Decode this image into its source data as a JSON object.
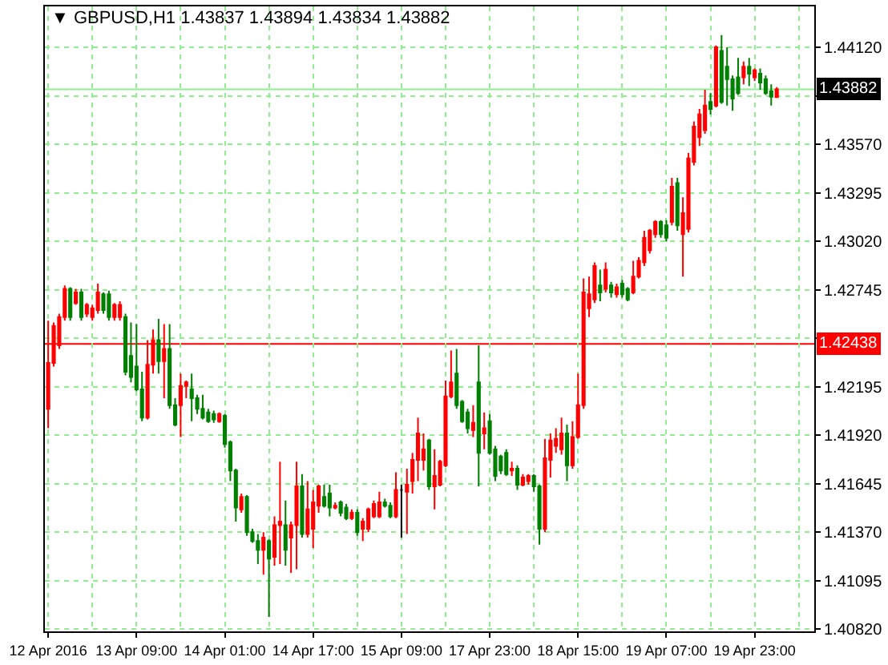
{
  "chart_data": {
    "type": "candlestick",
    "title": "▼ GBPUSD,H1 1.43837 1.43894 1.43834 1.43882",
    "categories": [
      "12 Apr 2016",
      null,
      null,
      null,
      null,
      null,
      null,
      null,
      null,
      null,
      null,
      null,
      null,
      null,
      null,
      null,
      "13 Apr 09:00",
      null,
      null,
      null,
      null,
      null,
      null,
      null,
      null,
      null,
      null,
      null,
      null,
      null,
      null,
      null,
      "14 Apr 01:00",
      null,
      null,
      null,
      null,
      null,
      null,
      null,
      null,
      null,
      null,
      null,
      null,
      null,
      null,
      null,
      "14 Apr 17:00",
      null,
      null,
      null,
      null,
      null,
      null,
      null,
      null,
      null,
      null,
      null,
      null,
      null,
      null,
      null,
      "15 Apr 09:00",
      null,
      null,
      null,
      null,
      null,
      null,
      null,
      null,
      null,
      null,
      null,
      null,
      null,
      null,
      null,
      "17 Apr 23:00",
      null,
      null,
      null,
      null,
      null,
      null,
      null,
      null,
      null,
      null,
      null,
      null,
      null,
      null,
      null,
      "18 Apr 15:00",
      null,
      null,
      null,
      null,
      null,
      null,
      null,
      null,
      null,
      null,
      null,
      null,
      null,
      null,
      null,
      "19 Apr 07:00",
      null,
      null,
      null,
      null,
      null,
      null,
      null,
      null,
      null,
      null,
      null,
      null,
      null,
      null,
      null,
      "19 Apr 23:00",
      null,
      null,
      null,
      null
    ],
    "ohlc": [
      [
        1.4207,
        1.4257,
        1.4196,
        1.4233
      ],
      [
        1.4233,
        1.4256,
        1.4231,
        1.4254
      ],
      [
        1.4243,
        1.4261,
        1.4241,
        1.4259
      ],
      [
        1.4259,
        1.4277,
        1.4257,
        1.4275
      ],
      [
        1.4275,
        1.4276,
        1.4257,
        1.4259
      ],
      [
        1.4267,
        1.4275,
        1.4266,
        1.4273
      ],
      [
        1.4273,
        1.4275,
        1.4257,
        1.4259
      ],
      [
        1.4261,
        1.4267,
        1.4259,
        1.4266
      ],
      [
        1.4259,
        1.4266,
        1.4257,
        1.4264
      ],
      [
        1.4263,
        1.4278,
        1.4261,
        1.4273
      ],
      [
        1.4272,
        1.4273,
        1.4261,
        1.4263
      ],
      [
        1.4272,
        1.4274,
        1.4257,
        1.4259
      ],
      [
        1.4259,
        1.4267,
        1.4257,
        1.4266
      ],
      [
        1.4259,
        1.4268,
        1.4257,
        1.4266
      ],
      [
        1.4259,
        1.4261,
        1.4226,
        1.4228
      ],
      [
        1.4237,
        1.4256,
        1.4222,
        1.4225
      ],
      [
        1.4231,
        1.4255,
        1.4217,
        1.4218
      ],
      [
        1.4218,
        1.4228,
        1.42,
        1.4202
      ],
      [
        1.4202,
        1.4246,
        1.4201,
        1.4232
      ],
      [
        1.4232,
        1.4252,
        1.4227,
        1.4246
      ],
      [
        1.4246,
        1.4258,
        1.4227,
        1.4234
      ],
      [
        1.4234,
        1.4255,
        1.4213,
        1.4241
      ],
      [
        1.4241,
        1.4255,
        1.4207,
        1.4209
      ],
      [
        1.4209,
        1.4213,
        1.4197,
        1.4198
      ],
      [
        1.4209,
        1.4227,
        1.4191,
        1.422
      ],
      [
        1.422,
        1.4223,
        1.4213,
        1.4222
      ],
      [
        1.4218,
        1.4227,
        1.42,
        1.4213
      ],
      [
        1.4213,
        1.4215,
        1.4204,
        1.4207
      ],
      [
        1.4207,
        1.4215,
        1.4201,
        1.4202
      ],
      [
        1.4205,
        1.4207,
        1.4199,
        1.42
      ],
      [
        1.4204,
        1.4206,
        1.4199,
        1.4201
      ],
      [
        1.42,
        1.4205,
        1.4199,
        1.4204
      ],
      [
        1.4203,
        1.4204,
        1.4185,
        1.4187
      ],
      [
        1.4188,
        1.4189,
        1.4166,
        1.4172
      ],
      [
        1.4172,
        1.4173,
        1.4143,
        1.4151
      ],
      [
        1.415,
        1.4159,
        1.4148,
        1.4157
      ],
      [
        1.4157,
        1.4158,
        1.4135,
        1.4137
      ],
      [
        1.4137,
        1.4139,
        1.4131,
        1.4132
      ],
      [
        1.4132,
        1.4136,
        1.4119,
        1.4127
      ],
      [
        1.4127,
        1.4137,
        1.4113,
        1.4134
      ],
      [
        1.4132,
        1.4133,
        1.4089,
        1.4122
      ],
      [
        1.4123,
        1.4146,
        1.4118,
        1.4141
      ],
      [
        1.4141,
        1.4177,
        1.4119,
        1.4143
      ],
      [
        1.4141,
        1.4155,
        1.4118,
        1.4127
      ],
      [
        1.4134,
        1.4143,
        1.4114,
        1.4141
      ],
      [
        1.4141,
        1.4177,
        1.4116,
        1.4163
      ],
      [
        1.4163,
        1.417,
        1.4134,
        1.4136
      ],
      [
        1.4136,
        1.4166,
        1.4134,
        1.415
      ],
      [
        1.4139,
        1.4161,
        1.4128,
        1.4154
      ],
      [
        1.4152,
        1.4164,
        1.4148,
        1.4163
      ],
      [
        1.4157,
        1.4164,
        1.4151,
        1.4152
      ],
      [
        1.4159,
        1.4164,
        1.4146,
        1.4151
      ],
      [
        1.4151,
        1.4154,
        1.415,
        1.4152
      ],
      [
        1.4154,
        1.4155,
        1.4146,
        1.4148
      ],
      [
        1.4151,
        1.4153,
        1.4144,
        1.4145
      ],
      [
        1.4145,
        1.415,
        1.4144,
        1.4148
      ],
      [
        1.4148,
        1.415,
        1.4135,
        1.4137
      ],
      [
        1.4139,
        1.4145,
        1.4132,
        1.4143
      ],
      [
        1.4139,
        1.4151,
        1.4137,
        1.415
      ],
      [
        1.4146,
        1.4155,
        1.4145,
        1.4153
      ],
      [
        1.4146,
        1.416,
        1.4145,
        1.4154
      ],
      [
        1.4154,
        1.4156,
        1.4151,
        1.4152
      ],
      [
        1.4152,
        1.4154,
        1.4145,
        1.4146
      ],
      [
        1.4146,
        1.4171,
        1.4145,
        1.4161
      ],
      [
        1.4161,
        1.4164,
        1.4134,
        1.4161
      ],
      [
        1.416,
        1.4173,
        1.4136,
        1.4164
      ],
      [
        1.4166,
        1.4182,
        1.4159,
        1.4178
      ],
      [
        1.4178,
        1.4202,
        1.4166,
        1.4193
      ],
      [
        1.4178,
        1.4193,
        1.4172,
        1.4184
      ],
      [
        1.4189,
        1.419,
        1.4161,
        1.4163
      ],
      [
        1.4163,
        1.4184,
        1.415,
        1.4169
      ],
      [
        1.4164,
        1.4178,
        1.4163,
        1.4177
      ],
      [
        1.4175,
        1.4223,
        1.4174,
        1.4214
      ],
      [
        1.4214,
        1.424,
        1.4213,
        1.4222
      ],
      [
        1.4227,
        1.4241,
        1.4207,
        1.4209
      ],
      [
        1.4211,
        1.4212,
        1.4199,
        1.42
      ],
      [
        1.4205,
        1.4207,
        1.4193,
        1.4196
      ],
      [
        1.4195,
        1.4209,
        1.4191,
        1.4199
      ],
      [
        1.4222,
        1.4243,
        1.4163,
        1.4182
      ],
      [
        1.4193,
        1.4205,
        1.4184,
        1.4196
      ],
      [
        1.42,
        1.4204,
        1.4181,
        1.4182
      ],
      [
        1.4184,
        1.4186,
        1.4166,
        1.4169
      ],
      [
        1.418,
        1.4181,
        1.417,
        1.4172
      ],
      [
        1.4182,
        1.4184,
        1.4169,
        1.417
      ],
      [
        1.4172,
        1.4177,
        1.4169,
        1.4173
      ],
      [
        1.4173,
        1.4175,
        1.4161,
        1.4164
      ],
      [
        1.4164,
        1.417,
        1.4163,
        1.4168
      ],
      [
        1.4166,
        1.417,
        1.4164,
        1.4169
      ],
      [
        1.4169,
        1.417,
        1.416,
        1.4163
      ],
      [
        1.4163,
        1.4164,
        1.413,
        1.4139
      ],
      [
        1.4139,
        1.419,
        1.4137,
        1.4179
      ],
      [
        1.4178,
        1.4193,
        1.4168,
        1.4189
      ],
      [
        1.4186,
        1.4196,
        1.4182,
        1.419
      ],
      [
        1.4184,
        1.4202,
        1.4181,
        1.4193
      ],
      [
        1.4193,
        1.4198,
        1.4166,
        1.4175
      ],
      [
        1.4175,
        1.42,
        1.4173,
        1.4191
      ],
      [
        1.4191,
        1.4227,
        1.419,
        1.4209
      ],
      [
        1.4209,
        1.4281,
        1.4207,
        1.4273
      ],
      [
        1.4264,
        1.4282,
        1.4259,
        1.4272
      ],
      [
        1.4269,
        1.429,
        1.4267,
        1.4288
      ],
      [
        1.4277,
        1.4286,
        1.4268,
        1.4273
      ],
      [
        1.4275,
        1.429,
        1.4273,
        1.4286
      ],
      [
        1.4277,
        1.4279,
        1.427,
        1.4273
      ],
      [
        1.4272,
        1.4278,
        1.427,
        1.4276
      ],
      [
        1.4278,
        1.428,
        1.427,
        1.4272
      ],
      [
        1.4275,
        1.4276,
        1.4268,
        1.4269
      ],
      [
        1.4273,
        1.4291,
        1.4272,
        1.4282
      ],
      [
        1.4282,
        1.4293,
        1.4281,
        1.4291
      ],
      [
        1.429,
        1.4308,
        1.4288,
        1.4304
      ],
      [
        1.4297,
        1.4309,
        1.4295,
        1.4308
      ],
      [
        1.4306,
        1.4314,
        1.4304,
        1.4313
      ],
      [
        1.4313,
        1.4314,
        1.4304,
        1.4306
      ],
      [
        1.4311,
        1.4314,
        1.4302,
        1.4304
      ],
      [
        1.4313,
        1.4338,
        1.4311,
        1.4333
      ],
      [
        1.4335,
        1.4338,
        1.4308,
        1.4311
      ],
      [
        1.4306,
        1.4327,
        1.4282,
        1.4318
      ],
      [
        1.4309,
        1.4352,
        1.4307,
        1.4349
      ],
      [
        1.4347,
        1.437,
        1.4345,
        1.4367
      ],
      [
        1.4361,
        1.4377,
        1.4356,
        1.4374
      ],
      [
        1.4365,
        1.4388,
        1.4363,
        1.4379
      ],
      [
        1.4381,
        1.4386,
        1.4374,
        1.4377
      ],
      [
        1.4379,
        1.4413,
        1.4378,
        1.4412
      ],
      [
        1.441,
        1.4419,
        1.438,
        1.4381
      ],
      [
        1.4401,
        1.4412,
        1.4379,
        1.4394
      ],
      [
        1.4394,
        1.4396,
        1.4376,
        1.4383
      ],
      [
        1.4395,
        1.4406,
        1.4385,
        1.4386
      ],
      [
        1.4395,
        1.4404,
        1.4391,
        1.4401
      ],
      [
        1.4401,
        1.4406,
        1.439,
        1.4397
      ],
      [
        1.4395,
        1.44,
        1.4393,
        1.4399
      ],
      [
        1.4397,
        1.44,
        1.4388,
        1.4392
      ],
      [
        1.4394,
        1.4396,
        1.4385,
        1.4386
      ],
      [
        1.4387,
        1.4391,
        1.4379,
        1.4384
      ],
      [
        1.43837,
        1.43894,
        1.43834,
        1.43882
      ]
    ],
    "colors": [
      "#ff0000",
      "#ff0000",
      "#ff0000",
      "#ff0000",
      "#008000",
      "#ff0000",
      "#008000",
      "#ff0000",
      "#ff0000",
      "#ff0000",
      "#008000",
      "#008000",
      "#ff0000",
      "#ff0000",
      "#008000",
      "#008000",
      "#008000",
      "#008000",
      "#ff0000",
      "#ff0000",
      "#008000",
      "#ff0000",
      "#008000",
      "#008000",
      "#ff0000",
      "#ff0000",
      "#008000",
      "#008000",
      "#008000",
      "#008000",
      "#008000",
      "#ff0000",
      "#008000",
      "#008000",
      "#008000",
      "#ff0000",
      "#008000",
      "#008000",
      "#008000",
      "#ff0000",
      "#008000",
      "#ff0000",
      "#ff0000",
      "#008000",
      "#ff0000",
      "#ff0000",
      "#008000",
      "#ff0000",
      "#ff0000",
      "#ff0000",
      "#008000",
      "#008000",
      "#ff0000",
      "#008000",
      "#008000",
      "#ff0000",
      "#008000",
      "#ff0000",
      "#ff0000",
      "#ff0000",
      "#ff0000",
      "#008000",
      "#008000",
      "#ff0000",
      "#000000",
      "#ff0000",
      "#ff0000",
      "#ff0000",
      "#ff0000",
      "#008000",
      "#ff0000",
      "#ff0000",
      "#ff0000",
      "#ff0000",
      "#008000",
      "#008000",
      "#008000",
      "#ff0000",
      "#008000",
      "#ff0000",
      "#008000",
      "#008000",
      "#008000",
      "#008000",
      "#ff0000",
      "#008000",
      "#ff0000",
      "#ff0000",
      "#008000",
      "#008000",
      "#ff0000",
      "#ff0000",
      "#ff0000",
      "#ff0000",
      "#008000",
      "#ff0000",
      "#ff0000",
      "#ff0000",
      "#ff0000",
      "#ff0000",
      "#008000",
      "#ff0000",
      "#008000",
      "#ff0000",
      "#008000",
      "#008000",
      "#ff0000",
      "#ff0000",
      "#ff0000",
      "#ff0000",
      "#ff0000",
      "#008000",
      "#008000",
      "#ff0000",
      "#008000",
      "#ff0000",
      "#ff0000",
      "#ff0000",
      "#ff0000",
      "#ff0000",
      "#008000",
      "#ff0000",
      "#008000",
      "#008000",
      "#008000",
      "#008000",
      "#ff0000",
      "#008000",
      "#ff0000",
      "#008000",
      "#008000",
      "#008000",
      "#ff0000"
    ],
    "ylim": [
      1.40808,
      1.44352
    ],
    "yticks": [
      {
        "value": 1.4082,
        "label": "1.40820"
      },
      {
        "value": 1.41095,
        "label": "1.41095"
      },
      {
        "value": 1.4137,
        "label": "1.41370"
      },
      {
        "value": 1.41645,
        "label": "1.41645"
      },
      {
        "value": 1.4192,
        "label": "1.41920"
      },
      {
        "value": 1.42195,
        "label": "1.42195"
      },
      {
        "value": 1.4247,
        "label": null
      },
      {
        "value": 1.42745,
        "label": "1.42745"
      },
      {
        "value": 1.4302,
        "label": "1.43020"
      },
      {
        "value": 1.43295,
        "label": "1.43295"
      },
      {
        "value": 1.4357,
        "label": "1.43570"
      },
      {
        "value": 1.43845,
        "label": null
      },
      {
        "value": 1.4412,
        "label": "1.44120"
      }
    ],
    "grid": true,
    "ref_lines": [
      {
        "axis": "y",
        "value": 1.43882,
        "label": "1.43882",
        "color": "#90ee90"
      },
      {
        "axis": "y",
        "value": 1.42438,
        "label": "1.42438",
        "color": "#ff0000"
      }
    ]
  }
}
